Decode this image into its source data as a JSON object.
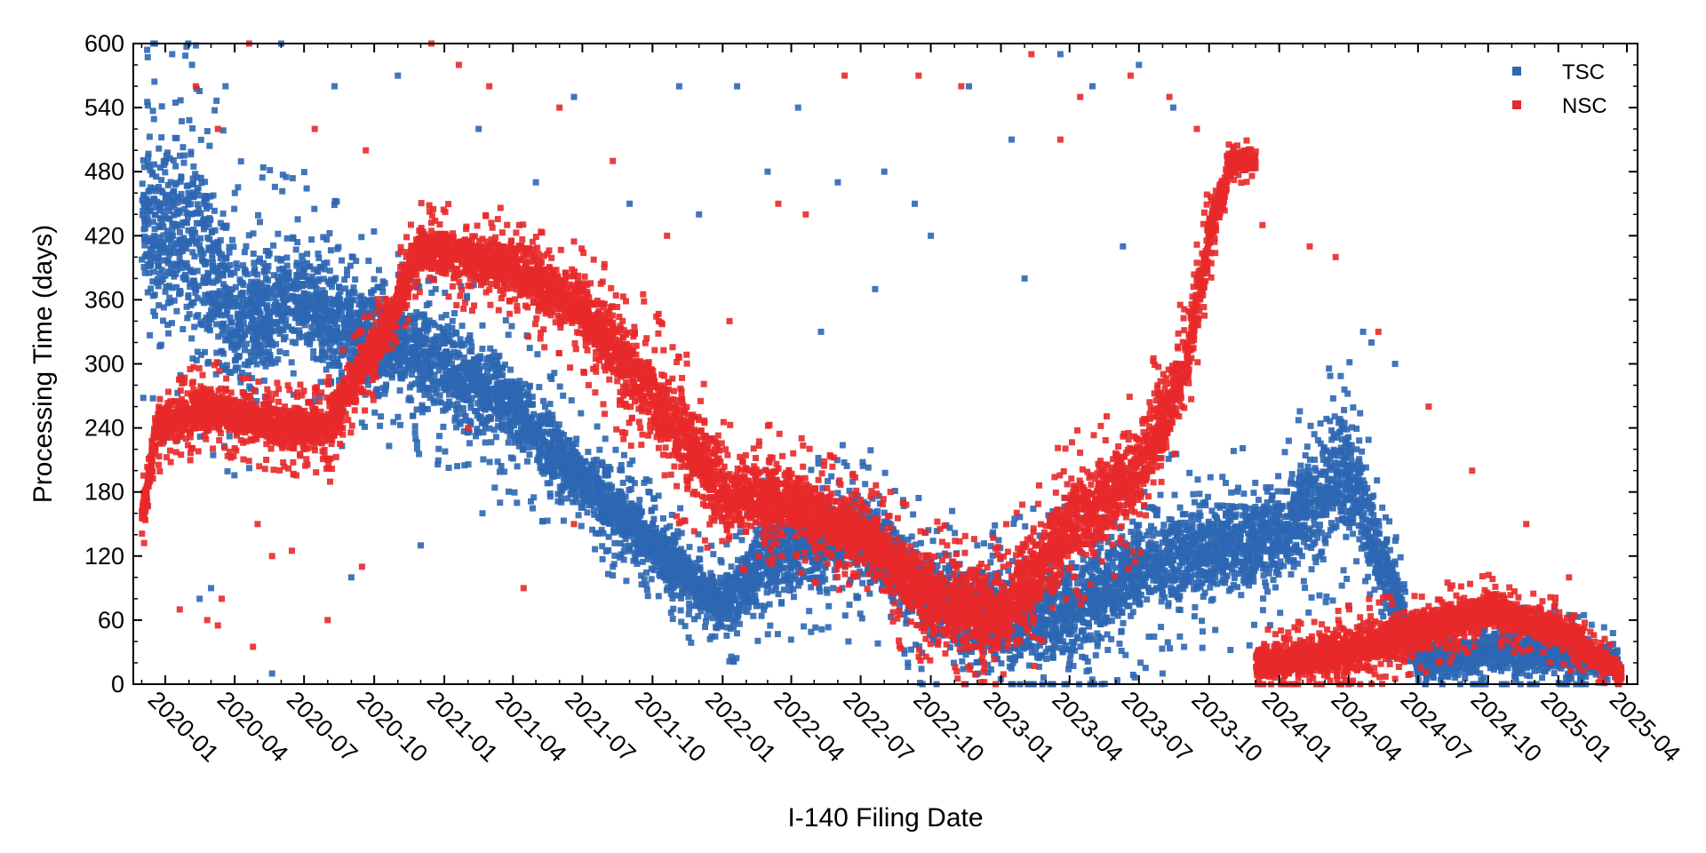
{
  "chart_data": {
    "type": "scatter",
    "title": "",
    "xlabel": "I-140 Filing Date",
    "ylabel": "Processing Time (days)",
    "xlim": [
      "2019-11-20",
      "2025-04-15"
    ],
    "ylim": [
      0,
      600
    ],
    "grid": false,
    "legend_position": "top-right",
    "x_ticks": [
      "2020-01",
      "2020-04",
      "2020-07",
      "2020-10",
      "2021-01",
      "2021-04",
      "2021-07",
      "2021-10",
      "2022-01",
      "2022-04",
      "2022-07",
      "2022-10",
      "2023-01",
      "2023-04",
      "2023-07",
      "2023-10",
      "2024-01",
      "2024-04",
      "2024-07",
      "2024-10",
      "2025-01",
      "2025-04"
    ],
    "y_ticks": [
      0,
      60,
      120,
      180,
      240,
      300,
      360,
      420,
      480,
      540,
      600
    ],
    "series": [
      {
        "name": "TSC",
        "color": "#2e67b2",
        "trend": [
          {
            "x": "2019-12-01",
            "y": 440,
            "spread": 90
          },
          {
            "x": "2020-02-01",
            "y": 420,
            "spread": 95
          },
          {
            "x": "2020-04-01",
            "y": 340,
            "spread": 70
          },
          {
            "x": "2020-06-15",
            "y": 360,
            "spread": 60
          },
          {
            "x": "2020-09-01",
            "y": 330,
            "spread": 50
          },
          {
            "x": "2020-10-15",
            "y": 320,
            "spread": 45
          },
          {
            "x": "2021-01-01",
            "y": 300,
            "spread": 45
          },
          {
            "x": "2021-04-01",
            "y": 260,
            "spread": 40
          },
          {
            "x": "2021-07-01",
            "y": 190,
            "spread": 30
          },
          {
            "x": "2021-10-01",
            "y": 130,
            "spread": 30
          },
          {
            "x": "2022-01-01",
            "y": 70,
            "spread": 25
          },
          {
            "x": "2022-03-01",
            "y": 120,
            "spread": 40
          },
          {
            "x": "2022-07-01",
            "y": 140,
            "spread": 40
          },
          {
            "x": "2022-10-01",
            "y": 80,
            "spread": 40
          },
          {
            "x": "2023-01-01",
            "y": 60,
            "spread": 45
          },
          {
            "x": "2023-04-01",
            "y": 70,
            "spread": 50
          },
          {
            "x": "2023-08-01",
            "y": 120,
            "spread": 45
          },
          {
            "x": "2023-11-01",
            "y": 130,
            "spread": 45
          },
          {
            "x": "2024-01-01",
            "y": 140,
            "spread": 45
          },
          {
            "x": "2024-04-01",
            "y": 200,
            "spread": 60
          },
          {
            "x": "2024-07-01",
            "y": 20,
            "spread": 15
          },
          {
            "x": "2024-10-01",
            "y": 30,
            "spread": 20
          },
          {
            "x": "2025-01-01",
            "y": 30,
            "spread": 20
          },
          {
            "x": "2025-03-20",
            "y": 20,
            "spread": 15
          }
        ],
        "points": [
          [
            "2020-01-10",
            590
          ],
          [
            "2020-02-05",
            580
          ],
          [
            "2020-03-20",
            560
          ],
          [
            "2020-06-01",
            600
          ],
          [
            "2020-08-10",
            560
          ],
          [
            "2020-11-01",
            570
          ],
          [
            "2021-02-15",
            520
          ],
          [
            "2021-05-01",
            470
          ],
          [
            "2021-06-20",
            550
          ],
          [
            "2021-09-01",
            450
          ],
          [
            "2021-11-05",
            560
          ],
          [
            "2022-01-20",
            560
          ],
          [
            "2022-03-01",
            480
          ],
          [
            "2022-04-10",
            540
          ],
          [
            "2022-06-01",
            470
          ],
          [
            "2022-08-01",
            480
          ],
          [
            "2022-09-10",
            450
          ],
          [
            "2022-11-20",
            560
          ],
          [
            "2023-01-15",
            510
          ],
          [
            "2023-03-20",
            590
          ],
          [
            "2023-05-01",
            560
          ],
          [
            "2023-07-01",
            580
          ],
          [
            "2023-08-15",
            540
          ],
          [
            "2022-05-10",
            330
          ],
          [
            "2022-07-20",
            370
          ],
          [
            "2023-02-01",
            380
          ],
          [
            "2023-06-10",
            410
          ],
          [
            "2022-10-01",
            420
          ],
          [
            "2021-12-01",
            440
          ],
          [
            "2020-02-15",
            80
          ],
          [
            "2020-03-01",
            90
          ],
          [
            "2020-05-20",
            10
          ],
          [
            "2021-02-20",
            160
          ],
          [
            "2021-03-15",
            170
          ],
          [
            "2020-09-01",
            100
          ],
          [
            "2020-12-01",
            130
          ],
          [
            "2021-08-10",
            110
          ],
          [
            "2022-06-15",
            40
          ],
          [
            "2022-09-01",
            20
          ],
          [
            "2022-12-01",
            130
          ],
          [
            "2023-03-01",
            30
          ],
          [
            "2023-08-01",
            10
          ],
          [
            "2024-05-01",
            320
          ],
          [
            "2024-06-01",
            300
          ],
          [
            "2024-04-20",
            330
          ]
        ]
      },
      {
        "name": "NSC",
        "color": "#e8292a",
        "trend": [
          {
            "x": "2019-12-01",
            "y": 150,
            "spread": 15
          },
          {
            "x": "2019-12-20",
            "y": 240,
            "spread": 20
          },
          {
            "x": "2020-03-01",
            "y": 260,
            "spread": 20
          },
          {
            "x": "2020-06-01",
            "y": 240,
            "spread": 20
          },
          {
            "x": "2020-08-01",
            "y": 240,
            "spread": 25
          },
          {
            "x": "2020-10-15",
            "y": 330,
            "spread": 20
          },
          {
            "x": "2020-12-01",
            "y": 410,
            "spread": 20
          },
          {
            "x": "2021-04-01",
            "y": 390,
            "spread": 25
          },
          {
            "x": "2021-07-01",
            "y": 350,
            "spread": 30
          },
          {
            "x": "2021-10-01",
            "y": 270,
            "spread": 40
          },
          {
            "x": "2022-01-01",
            "y": 180,
            "spread": 40
          },
          {
            "x": "2022-04-01",
            "y": 170,
            "spread": 30
          },
          {
            "x": "2022-07-01",
            "y": 140,
            "spread": 30
          },
          {
            "x": "2022-10-01",
            "y": 80,
            "spread": 35
          },
          {
            "x": "2023-01-01",
            "y": 60,
            "spread": 40
          },
          {
            "x": "2023-04-01",
            "y": 150,
            "spread": 40
          },
          {
            "x": "2023-07-01",
            "y": 200,
            "spread": 40
          },
          {
            "x": "2023-09-01",
            "y": 300,
            "spread": 30
          },
          {
            "x": "2023-10-01",
            "y": 420,
            "spread": 25
          },
          {
            "x": "2023-11-01",
            "y": 490,
            "spread": 10
          },
          {
            "x": "2024-01-01",
            "y": 20,
            "spread": 15
          },
          {
            "x": "2024-04-01",
            "y": 30,
            "spread": 20
          },
          {
            "x": "2024-07-01",
            "y": 50,
            "spread": 20
          },
          {
            "x": "2024-10-01",
            "y": 70,
            "spread": 15
          },
          {
            "x": "2025-01-01",
            "y": 50,
            "spread": 15
          },
          {
            "x": "2025-03-25",
            "y": 10,
            "spread": 8
          }
        ],
        "points": [
          [
            "2020-04-20",
            600
          ],
          [
            "2020-02-10",
            560
          ],
          [
            "2020-03-10",
            520
          ],
          [
            "2020-07-15",
            520
          ],
          [
            "2020-09-20",
            500
          ],
          [
            "2020-12-15",
            600
          ],
          [
            "2021-01-20",
            580
          ],
          [
            "2021-03-01",
            560
          ],
          [
            "2021-06-01",
            540
          ],
          [
            "2021-08-10",
            490
          ],
          [
            "2021-10-20",
            420
          ],
          [
            "2022-01-10",
            340
          ],
          [
            "2022-03-15",
            450
          ],
          [
            "2022-04-20",
            440
          ],
          [
            "2022-06-10",
            570
          ],
          [
            "2022-09-15",
            570
          ],
          [
            "2022-11-10",
            560
          ],
          [
            "2023-02-10",
            590
          ],
          [
            "2023-03-20",
            510
          ],
          [
            "2023-04-15",
            550
          ],
          [
            "2023-06-20",
            570
          ],
          [
            "2023-08-10",
            550
          ],
          [
            "2023-09-15",
            520
          ],
          [
            "2023-12-10",
            430
          ],
          [
            "2024-02-10",
            410
          ],
          [
            "2024-03-15",
            400
          ],
          [
            "2024-05-10",
            330
          ],
          [
            "2024-07-15",
            260
          ],
          [
            "2024-09-10",
            200
          ],
          [
            "2024-11-20",
            150
          ],
          [
            "2025-01-15",
            100
          ],
          [
            "2020-01-20",
            70
          ],
          [
            "2020-03-10",
            55
          ],
          [
            "2020-03-15",
            80
          ],
          [
            "2020-05-01",
            150
          ],
          [
            "2020-05-20",
            120
          ],
          [
            "2020-06-15",
            125
          ],
          [
            "2020-08-01",
            60
          ],
          [
            "2020-09-15",
            110
          ],
          [
            "2021-02-01",
            240
          ],
          [
            "2021-04-15",
            90
          ],
          [
            "2020-02-25",
            60
          ],
          [
            "2020-04-25",
            35
          ],
          [
            "2021-06-20",
            150
          ]
        ]
      }
    ]
  }
}
